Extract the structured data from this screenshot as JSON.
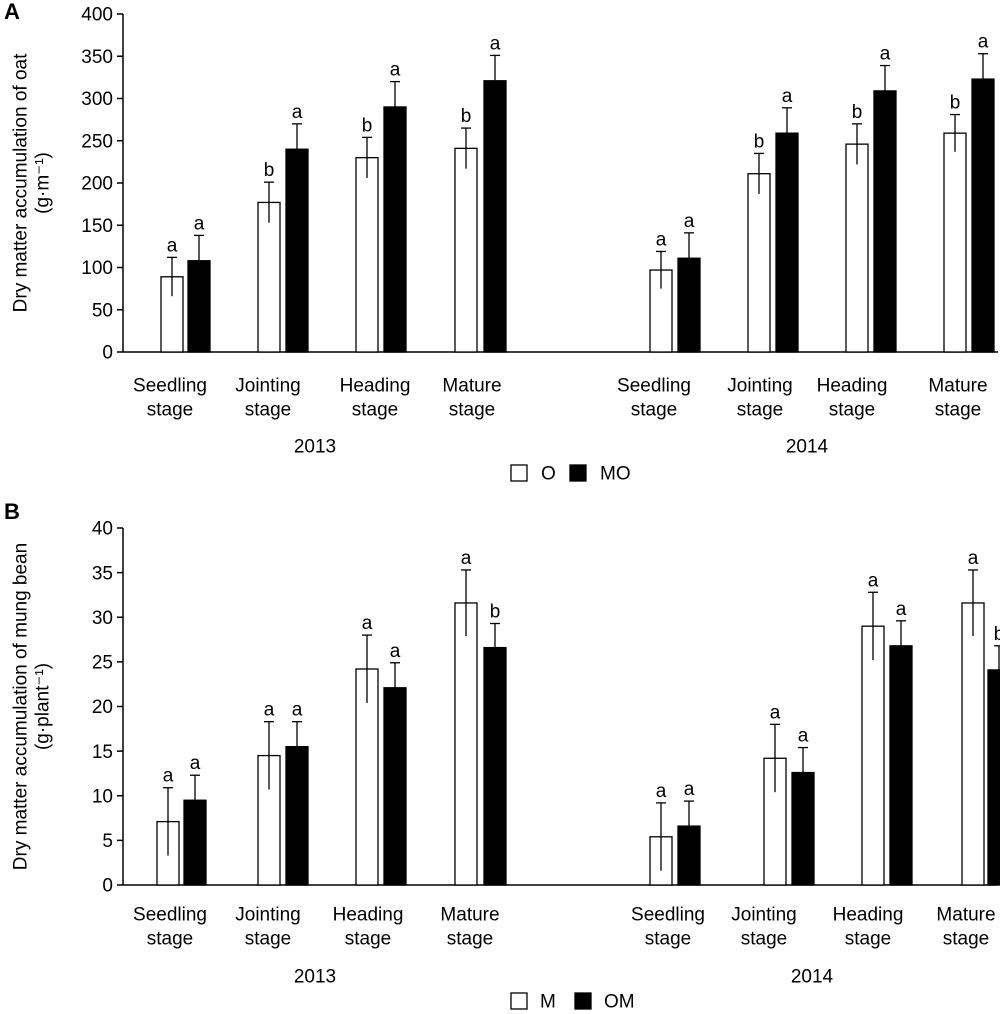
{
  "chart_data": [
    {
      "type": "bar",
      "panel_label": "A",
      "ylabel_line1": "Dry matter accumulation of oat",
      "ylabel_line2": "(g·m⁻¹)",
      "ylim": [
        0,
        400
      ],
      "yticks": [
        0,
        50,
        100,
        150,
        200,
        250,
        300,
        350,
        400
      ],
      "groups": [
        {
          "year": "2013",
          "categories": [
            [
              "Seedling",
              "stage"
            ],
            [
              "Jointing",
              "stage"
            ],
            [
              "Heading",
              "stage"
            ],
            [
              "Mature",
              "stage"
            ]
          ]
        },
        {
          "year": "2014",
          "categories": [
            [
              "Seedling",
              "stage"
            ],
            [
              "Jointing",
              "stage"
            ],
            [
              "Heading",
              "stage"
            ],
            [
              "Mature",
              "stage"
            ]
          ]
        }
      ],
      "series": [
        {
          "name": "O",
          "color": "#ffffff",
          "values": [
            89,
            177,
            230,
            241,
            97,
            211,
            246,
            259
          ],
          "errors": [
            23,
            24,
            24,
            24,
            22,
            24,
            24,
            22
          ],
          "letters": [
            "a",
            "b",
            "b",
            "b",
            "a",
            "b",
            "b",
            "b"
          ]
        },
        {
          "name": "MO",
          "color": "#000000",
          "values": [
            108,
            240,
            290,
            321,
            111,
            259,
            309,
            323
          ],
          "errors": [
            30,
            30,
            30,
            30,
            30,
            30,
            30,
            30
          ],
          "letters": [
            "a",
            "a",
            "a",
            "a",
            "a",
            "a",
            "a",
            "a"
          ]
        }
      ],
      "legend": [
        "O",
        "MO"
      ]
    },
    {
      "type": "bar",
      "panel_label": "B",
      "ylabel_line1": "Dry matter accumulation of mung bean",
      "ylabel_line2": "(g·plant⁻¹)",
      "ylim": [
        0,
        40
      ],
      "yticks": [
        0,
        5,
        10,
        15,
        20,
        25,
        30,
        35,
        40
      ],
      "groups": [
        {
          "year": "2013",
          "categories": [
            [
              "Seedling",
              "stage"
            ],
            [
              "Jointing",
              "stage"
            ],
            [
              "Heading",
              "stage"
            ],
            [
              "Mature",
              "stage"
            ]
          ]
        },
        {
          "year": "2014",
          "categories": [
            [
              "Seedling",
              "stage"
            ],
            [
              "Jointing",
              "stage"
            ],
            [
              "Heading",
              "stage"
            ],
            [
              "Mature",
              "stage"
            ]
          ]
        }
      ],
      "series": [
        {
          "name": "M",
          "color": "#ffffff",
          "values": [
            7.1,
            14.5,
            24.2,
            31.6,
            5.4,
            14.2,
            29.0,
            31.6
          ],
          "errors": [
            3.8,
            3.8,
            3.8,
            3.7,
            3.8,
            3.8,
            3.8,
            3.7
          ],
          "letters": [
            "a",
            "a",
            "a",
            "a",
            "a",
            "a",
            "a",
            "a"
          ]
        },
        {
          "name": "OM",
          "color": "#000000",
          "values": [
            9.5,
            15.5,
            22.1,
            26.6,
            6.6,
            12.6,
            26.8,
            24.1
          ],
          "errors": [
            2.8,
            2.8,
            2.8,
            2.7,
            2.8,
            2.8,
            2.8,
            2.7
          ],
          "letters": [
            "a",
            "a",
            "a",
            "b",
            "a",
            "a",
            "a",
            "b"
          ]
        }
      ],
      "legend": [
        "M",
        "OM"
      ]
    }
  ]
}
